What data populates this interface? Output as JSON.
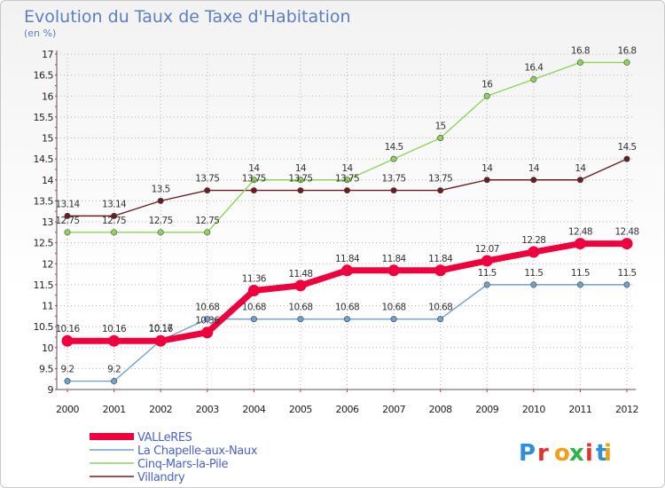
{
  "chart_data": {
    "type": "line",
    "title": "Evolution du Taux de Taxe d'Habitation",
    "subtitle": "(en %)",
    "xlabel": "",
    "ylabel": "",
    "ylim": [
      9,
      17
    ],
    "y_ticks": [
      "9",
      "9.5",
      "10",
      "10.5",
      "11",
      "11.5",
      "12",
      "12.5",
      "13",
      "13.5",
      "14",
      "14.5",
      "15",
      "15.5",
      "16",
      "16.5",
      "17"
    ],
    "categories": [
      "2000",
      "2001",
      "2002",
      "2003",
      "2004",
      "2005",
      "2006",
      "2007",
      "2008",
      "2009",
      "2010",
      "2011",
      "2012"
    ],
    "grid": true,
    "series": [
      {
        "name": "Villandry",
        "color": "#6b1c22",
        "values": [
          13.14,
          13.14,
          13.5,
          13.75,
          13.75,
          13.75,
          13.75,
          13.75,
          13.75,
          14,
          14,
          14,
          14.5
        ],
        "labels": [
          "13.14",
          "13.14",
          "13.5",
          "13.75",
          "13.75",
          "13.75",
          "13.75",
          "13.75",
          "13.75",
          "14",
          "14",
          "14",
          "14.5"
        ]
      },
      {
        "name": "Cinq-Mars-la-Pile",
        "color": "#8fd45a",
        "values": [
          12.75,
          12.75,
          12.75,
          12.75,
          14,
          14,
          14,
          14.5,
          15,
          16,
          16.4,
          16.8,
          16.8
        ],
        "labels": [
          "12.75",
          "12.75",
          "12.75",
          "12.75",
          "14",
          "14",
          "14",
          "14.5",
          "15",
          "16",
          "16.4",
          "16.8",
          "16.8"
        ]
      },
      {
        "name": "La Chapelle-aux-Naux",
        "color": "#6fa2d0",
        "values": [
          9.2,
          9.2,
          10.17,
          10.68,
          10.68,
          10.68,
          10.68,
          10.68,
          10.68,
          11.5,
          11.5,
          11.5,
          11.5
        ],
        "labels": [
          "9.2",
          "9.2",
          "10.17",
          "10.68",
          "10.68",
          "10.68",
          "10.68",
          "10.68",
          "10.68",
          "11.5",
          "11.5",
          "11.5",
          "11.5"
        ]
      },
      {
        "name": "VALLeRES",
        "color": "#f0003c",
        "values": [
          10.16,
          10.16,
          10.16,
          10.36,
          11.36,
          11.48,
          11.84,
          11.84,
          11.84,
          12.07,
          12.28,
          12.48,
          12.48
        ],
        "labels": [
          "10.16",
          "10.16",
          "10.16",
          "10.36",
          "11.36",
          "11.48",
          "11.84",
          "11.84",
          "11.84",
          "12.07",
          "12.28",
          "12.48",
          "12.48"
        ]
      }
    ],
    "legend": [
      "VALLeRES",
      "La Chapelle-aux-Naux",
      "Cinq-Mars-la-Pile",
      "Villandry"
    ],
    "legend_position": "bottom-left"
  },
  "branding": {
    "logo_text": "Proxiti",
    "letter_colors": [
      "#2f8fd8",
      "#e8302a",
      "#f2a012",
      "#2bb44a",
      "#e8302a",
      "#2f8fd8",
      "#f2a012"
    ]
  }
}
